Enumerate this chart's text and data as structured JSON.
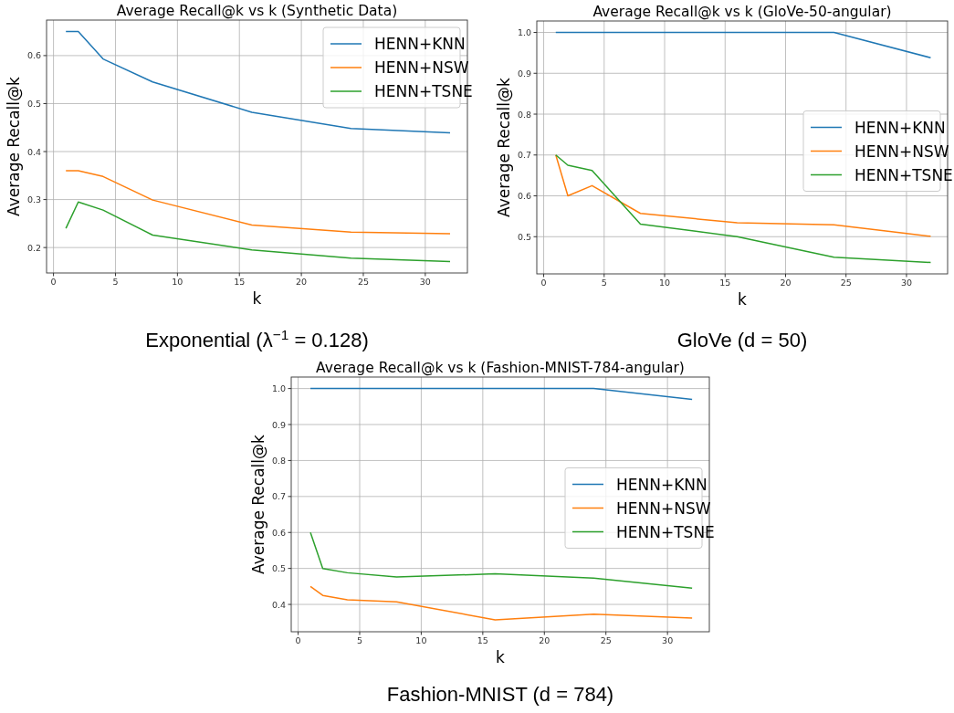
{
  "chart_data": [
    {
      "type": "line",
      "title": "Average Recall@k vs k (Synthetic Data)",
      "xlabel": "k",
      "ylabel": "Average Recall@k",
      "x": [
        1,
        2,
        4,
        8,
        16,
        24,
        32
      ],
      "xlim": [
        -0.56,
        33.4
      ],
      "xticks": [
        0,
        5,
        10,
        15,
        20,
        25,
        30
      ],
      "ylim": [
        0.147,
        0.674
      ],
      "yticks": [
        0.2,
        0.3,
        0.4,
        0.5,
        0.6
      ],
      "grid": true,
      "legend": "top right",
      "annotations": [
        "Exponential (λ$^{−1}$ = 0.128)"
      ],
      "series": [
        {
          "name": "HENN+KNN",
          "color": "#1f77b4",
          "values": [
            0.65,
            0.65,
            0.593,
            0.545,
            0.482,
            0.448,
            0.439
          ]
        },
        {
          "name": "HENN+NSW",
          "color": "#ff7f0e",
          "values": [
            0.36,
            0.36,
            0.348,
            0.299,
            0.247,
            0.232,
            0.229
          ]
        },
        {
          "name": "HENN+TSNE",
          "color": "#2ca02c",
          "values": [
            0.24,
            0.295,
            0.278,
            0.226,
            0.195,
            0.178,
            0.171
          ]
        }
      ]
    },
    {
      "type": "line",
      "title": "Average Recall@k vs k (GloVe-50-angular)",
      "xlabel": "k",
      "ylabel": "Average Recall@k",
      "x": [
        1,
        2,
        4,
        8,
        16,
        24,
        32
      ],
      "xlim": [
        -0.57,
        33.4
      ],
      "xticks": [
        0,
        5,
        10,
        15,
        20,
        25,
        30
      ],
      "ylim": [
        0.409,
        1.028
      ],
      "yticks": [
        {
          "value": 0.5,
          "label": "0.5"
        },
        {
          "value": 0.6,
          "label": "0.6"
        },
        {
          "value": 0.7,
          "label": "0.7"
        },
        {
          "value": 0.8,
          "label": "0.8"
        },
        {
          "value": 0.9,
          "label": "0.9"
        },
        {
          "value": 1.0,
          "label": "1.0"
        }
      ],
      "grid": true,
      "legend": "right",
      "annotations": [
        "GloVe (d = 50)"
      ],
      "series": [
        {
          "name": "HENN+KNN",
          "color": "#1f77b4",
          "values": [
            1.0,
            1.0,
            1.0,
            1.0,
            1.0,
            1.0,
            0.938
          ]
        },
        {
          "name": "HENN+NSW",
          "color": "#ff7f0e",
          "values": [
            0.7,
            0.6,
            0.625,
            0.557,
            0.534,
            0.529,
            0.501
          ]
        },
        {
          "name": "HENN+TSNE",
          "color": "#2ca02c",
          "values": [
            0.7,
            0.675,
            0.662,
            0.531,
            0.5,
            0.45,
            0.437
          ]
        }
      ]
    },
    {
      "type": "line",
      "title": "Average Recall@k vs k (Fashion-MNIST-784-angular)",
      "xlabel": "k",
      "ylabel": "Average Recall@k",
      "x": [
        1,
        2,
        4,
        8,
        16,
        24,
        32
      ],
      "xlim": [
        -0.56,
        33.4
      ],
      "xticks": [
        0,
        5,
        10,
        15,
        20,
        25,
        30
      ],
      "ylim": [
        0.324,
        1.032
      ],
      "yticks": [
        {
          "value": 0.4,
          "label": "0.4"
        },
        {
          "value": 0.5,
          "label": "0.5"
        },
        {
          "value": 0.6,
          "label": "0.6"
        },
        {
          "value": 0.7,
          "label": "0.7"
        },
        {
          "value": 0.8,
          "label": "0.8"
        },
        {
          "value": 0.9,
          "label": "0.9"
        },
        {
          "value": 1.0,
          "label": "1.0"
        }
      ],
      "grid": true,
      "legend": "right",
      "annotations": [
        "Fashion-MNIST (d = 784)"
      ],
      "series": [
        {
          "name": "HENN+KNN",
          "color": "#1f77b4",
          "values": [
            1.0,
            1.0,
            1.0,
            1.0,
            1.0,
            1.0,
            0.97
          ]
        },
        {
          "name": "HENN+NSW",
          "color": "#ff7f0e",
          "values": [
            0.45,
            0.425,
            0.413,
            0.407,
            0.357,
            0.373,
            0.362
          ]
        },
        {
          "name": "HENN+TSNE",
          "color": "#2ca02c",
          "values": [
            0.6,
            0.5,
            0.488,
            0.476,
            0.485,
            0.473,
            0.445
          ]
        }
      ]
    }
  ]
}
